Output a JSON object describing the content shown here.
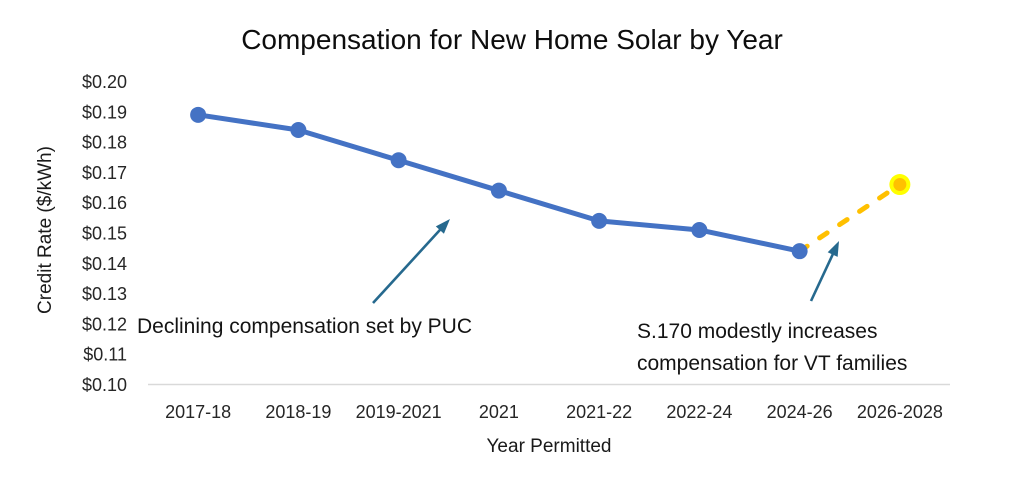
{
  "chart_data": {
    "type": "line",
    "title": "Compensation for New Home Solar by Year",
    "xlabel": "Year Permitted",
    "ylabel": "Credit Rate ($/kWh)",
    "categories": [
      "2017-18",
      "2018-19",
      "2019-2021",
      "2021",
      "2021-22",
      "2022-24",
      "2024-26",
      "2026-2028"
    ],
    "series": [
      {
        "id": "series-1",
        "style": "solid",
        "color": "#4472C4",
        "markers": "all",
        "values": [
          0.189,
          0.184,
          0.174,
          0.164,
          0.154,
          0.151,
          0.144,
          null
        ]
      },
      {
        "id": "series-2",
        "style": "dashed",
        "color": "#FFC000",
        "markers": "last",
        "marker_fill": "#FFC000",
        "marker_ring": "#FFFF00",
        "values": [
          null,
          null,
          null,
          null,
          null,
          null,
          0.144,
          0.166
        ]
      }
    ],
    "ylim": [
      0.1,
      0.2
    ],
    "ytick_step": 0.01,
    "ytick_labels": [
      "$0.20",
      "$0.19",
      "$0.18",
      "$0.17",
      "$0.16",
      "$0.15",
      "$0.14",
      "$0.13",
      "$0.12",
      "$0.11",
      "$0.10"
    ],
    "grid": false,
    "legend": "none",
    "annotations": [
      {
        "text": "Declining compensation set by PUC"
      },
      {
        "lines": [
          "S.170 modestly increases",
          "compensation for VT families"
        ]
      }
    ],
    "colors": {
      "axis_line": "#D9D9D9",
      "tick_text": "#262626",
      "arrow": "#26698E"
    }
  }
}
